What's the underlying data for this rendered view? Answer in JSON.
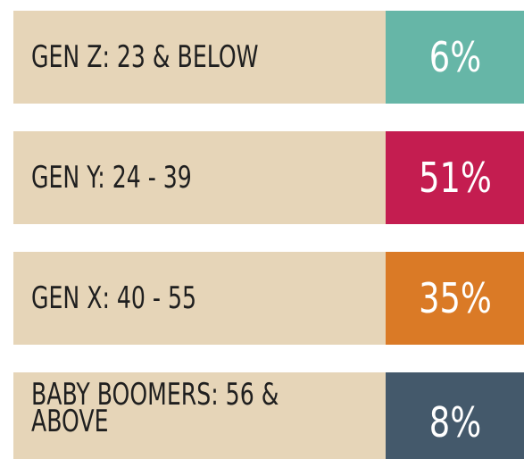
{
  "items": [
    {
      "label": "GEN Z: 23 & BELOW",
      "value": "6%",
      "color": "#66b6a7"
    },
    {
      "label": "GEN Y: 24 - 39",
      "value": "51%",
      "color": "#c41d50"
    },
    {
      "label": "GEN X: 40 - 55",
      "value": "35%",
      "color": "#da7a26"
    },
    {
      "label": "BABY BOOMERS: 56 & ABOVE",
      "value": "8%",
      "color": "#44596b"
    }
  ]
}
